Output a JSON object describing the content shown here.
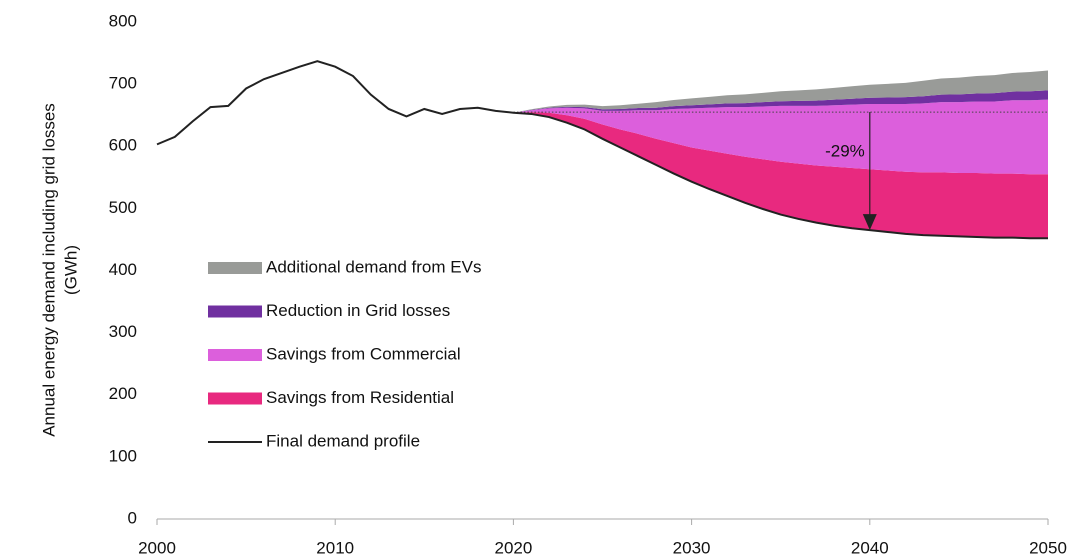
{
  "chart_data": {
    "type": "stacked_area_line",
    "ylabel": [
      "Annual energy demand including grid losses",
      "(GWh)"
    ],
    "x": [
      2000,
      2001,
      2002,
      2003,
      2004,
      2005,
      2006,
      2007,
      2008,
      2009,
      2010,
      2011,
      2012,
      2013,
      2014,
      2015,
      2016,
      2017,
      2018,
      2019,
      2020,
      2021,
      2022,
      2023,
      2024,
      2025,
      2026,
      2027,
      2028,
      2029,
      2030,
      2031,
      2032,
      2033,
      2034,
      2035,
      2036,
      2037,
      2038,
      2039,
      2040,
      2041,
      2042,
      2043,
      2044,
      2045,
      2046,
      2047,
      2048,
      2049,
      2050
    ],
    "line": {
      "name": "Final demand profile",
      "color": "#222222",
      "values": [
        603,
        615,
        640,
        663,
        665,
        693,
        708,
        718,
        728,
        737,
        728,
        713,
        683,
        660,
        648,
        660,
        652,
        660,
        662,
        657,
        654,
        652,
        647,
        638,
        627,
        612,
        598,
        584,
        570,
        556,
        543,
        531,
        520,
        509,
        499,
        490,
        483,
        477,
        472,
        468,
        465,
        462,
        459,
        457,
        456,
        455,
        454,
        453,
        453,
        452,
        452
      ]
    },
    "series": [
      {
        "name": "Savings from Residential",
        "color": "#e8297f",
        "values": [
          null,
          null,
          null,
          null,
          null,
          null,
          null,
          null,
          null,
          null,
          null,
          null,
          null,
          null,
          null,
          null,
          null,
          null,
          null,
          null,
          0,
          3,
          7,
          12,
          17,
          23,
          29,
          36,
          42,
          49,
          55,
          62,
          68,
          74,
          80,
          85,
          89,
          92,
          95,
          97,
          98,
          99,
          100,
          101,
          102,
          102,
          103,
          103,
          103,
          103,
          103
        ]
      },
      {
        "name": "Savings from Commercial",
        "color": "#dc5fdc",
        "values": [
          null,
          null,
          null,
          null,
          null,
          null,
          null,
          null,
          null,
          null,
          null,
          null,
          null,
          null,
          null,
          null,
          null,
          null,
          null,
          null,
          0,
          3,
          7,
          12,
          17,
          22,
          30,
          38,
          46,
          55,
          63,
          69,
          75,
          80,
          85,
          90,
          93,
          96,
          99,
          102,
          105,
          107,
          109,
          111,
          113,
          114,
          115,
          116,
          118,
          119,
          120
        ]
      },
      {
        "name": "Reduction in Grid losses",
        "color": "#7030a0",
        "values": [
          null,
          null,
          null,
          null,
          null,
          null,
          null,
          null,
          null,
          null,
          null,
          null,
          null,
          null,
          null,
          null,
          null,
          null,
          null,
          null,
          0,
          0.5,
          1,
          1.5,
          2,
          2.5,
          3,
          3.5,
          4,
          4.5,
          5,
          5.5,
          6,
          6.5,
          7,
          7.5,
          8,
          8.5,
          9,
          9.5,
          10,
          10.5,
          11,
          11.5,
          12,
          12.5,
          13,
          13.5,
          14,
          14.5,
          15
        ]
      },
      {
        "name": "Additional demand from EVs",
        "color": "#999b98",
        "values": [
          null,
          null,
          null,
          null,
          null,
          null,
          null,
          null,
          null,
          null,
          null,
          null,
          null,
          null,
          null,
          null,
          null,
          null,
          null,
          null,
          0,
          1,
          2,
          3,
          4,
          5,
          6,
          7,
          9,
          10,
          11,
          12,
          13,
          14,
          15,
          16,
          17,
          18,
          19,
          20,
          21,
          22,
          23,
          25,
          26,
          27,
          28,
          29,
          30,
          31,
          32
        ]
      }
    ],
    "annotation": {
      "label": "-29%",
      "x": 2040,
      "from": 655,
      "to": 465
    },
    "reference": {
      "value": 655,
      "from": 2020,
      "to": 2050
    },
    "xlim": [
      2000,
      2050
    ],
    "xticks": [
      2000,
      2010,
      2020,
      2030,
      2040,
      2050
    ],
    "ylim": [
      0,
      800
    ],
    "yticks": [
      0,
      100,
      200,
      300,
      400,
      500,
      600,
      700,
      800
    ],
    "grid": false,
    "legend": "left"
  }
}
